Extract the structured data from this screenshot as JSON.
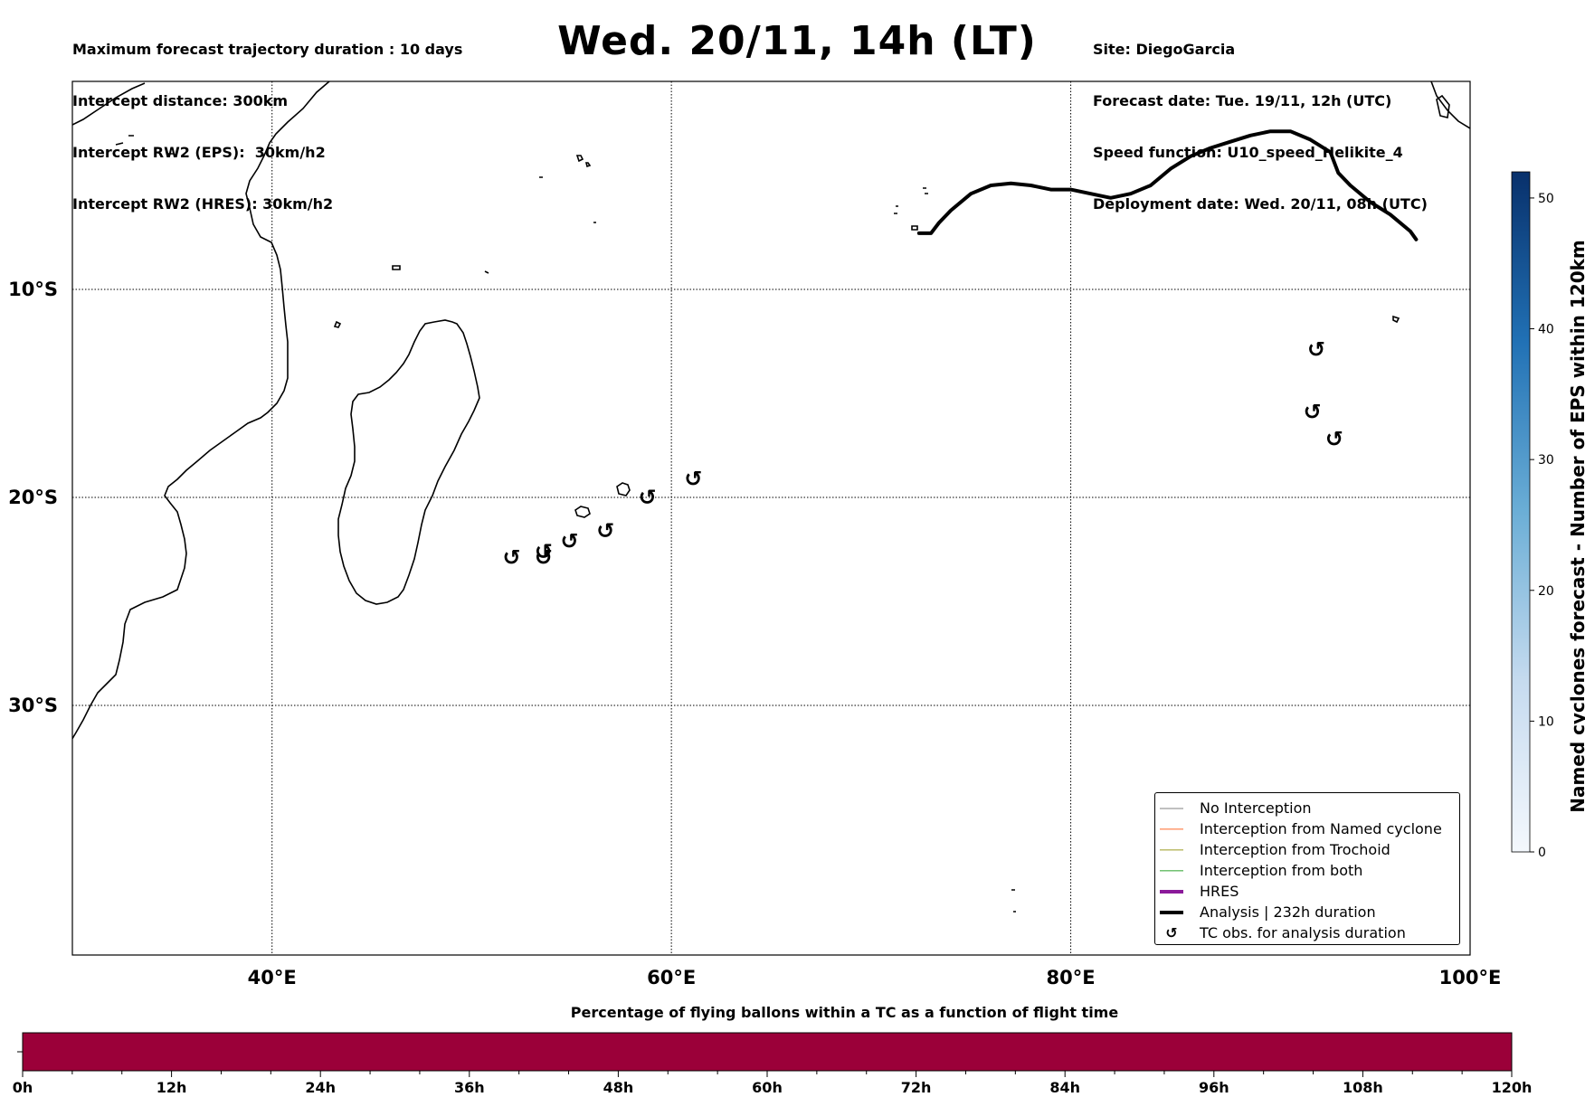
{
  "title": "Wed. 20/11, 14h (LT)",
  "info_left": [
    "Maximum forecast trajectory duration : 10 days",
    "Intercept distance: 300km",
    "Intercept RW2 (EPS):  30km/h2",
    "Intercept RW2 (HRES): 30km/h2"
  ],
  "info_right": [
    "Site: DiegoGarcia",
    "Forecast date: Tue. 19/11, 12h (UTC)",
    "Speed function: U10_speed_Helikite_4",
    "Deployment date: Wed. 20/11, 08h (UTC)"
  ],
  "map": {
    "lon_ticks": [
      "40°E",
      "60°E",
      "80°E",
      "100°E"
    ],
    "lat_ticks": [
      "10°S",
      "20°S",
      "30°S"
    ],
    "lon_range": [
      30,
      100
    ],
    "lat_range": [
      -42,
      0
    ],
    "grid": true,
    "analysis_track": [
      [
        72.4,
        -7.3
      ],
      [
        73,
        -7.3
      ],
      [
        73.4,
        -6.8
      ],
      [
        74,
        -6.2
      ],
      [
        75,
        -5.4
      ],
      [
        76,
        -5.0
      ],
      [
        77,
        -4.9
      ],
      [
        78,
        -5.0
      ],
      [
        79,
        -5.2
      ],
      [
        80,
        -5.2
      ],
      [
        81,
        -5.4
      ],
      [
        82,
        -5.6
      ],
      [
        83,
        -5.4
      ],
      [
        84,
        -5.0
      ],
      [
        85,
        -4.2
      ],
      [
        86,
        -3.6
      ],
      [
        87,
        -3.2
      ],
      [
        88,
        -2.9
      ],
      [
        89,
        -2.6
      ],
      [
        90,
        -2.4
      ],
      [
        91,
        -2.4
      ],
      [
        92,
        -2.8
      ],
      [
        93,
        -3.4
      ],
      [
        93.4,
        -4.4
      ],
      [
        94,
        -5.0
      ],
      [
        95,
        -5.8
      ],
      [
        96,
        -6.4
      ],
      [
        97,
        -7.2
      ],
      [
        97.3,
        -7.6
      ]
    ],
    "tc_observations": [
      [
        52.0,
        -22.9
      ],
      [
        53.6,
        -22.6
      ],
      [
        53.6,
        -22.9
      ],
      [
        54.9,
        -22.1
      ],
      [
        56.7,
        -21.6
      ],
      [
        58.8,
        -20.0
      ],
      [
        61.1,
        -19.1
      ],
      [
        92.3,
        -12.9
      ],
      [
        92.1,
        -15.9
      ],
      [
        93.2,
        -17.2
      ]
    ]
  },
  "legend": [
    {
      "label": "No Interception",
      "color": "#808080",
      "type": "line",
      "width": 1
    },
    {
      "label": "Interception from Named cyclone",
      "color": "#ff6a2a",
      "type": "line",
      "width": 1.2
    },
    {
      "label": "Interception from Trochoid",
      "color": "#9a9a20",
      "type": "line",
      "width": 1.2
    },
    {
      "label": "Interception from both",
      "color": "#2aa02a",
      "type": "line",
      "width": 1.2
    },
    {
      "label": "HRES",
      "color": "#8b1a9a",
      "type": "line",
      "width": 4
    },
    {
      "label": "Analysis | 232h duration",
      "color": "#000000",
      "type": "line",
      "width": 4
    },
    {
      "label": "TC obs. for analysis duration",
      "color": "#000000",
      "type": "marker",
      "glyph": "↺"
    }
  ],
  "colorbar": {
    "label": "Named cyclones forecast - Number of EPS within 120km",
    "ticks": [
      "0",
      "10",
      "20",
      "30",
      "40",
      "50"
    ],
    "range": [
      0,
      52
    ],
    "color_low": "#f4f8fd",
    "color_high": "#08306b"
  },
  "flight_bar": {
    "title": "Percentage of flying ballons within a TC as a function of flight time",
    "color": "#9b0039",
    "ticks": [
      "0h",
      "12h",
      "24h",
      "36h",
      "48h",
      "60h",
      "72h",
      "84h",
      "96h",
      "108h",
      "120h"
    ]
  }
}
